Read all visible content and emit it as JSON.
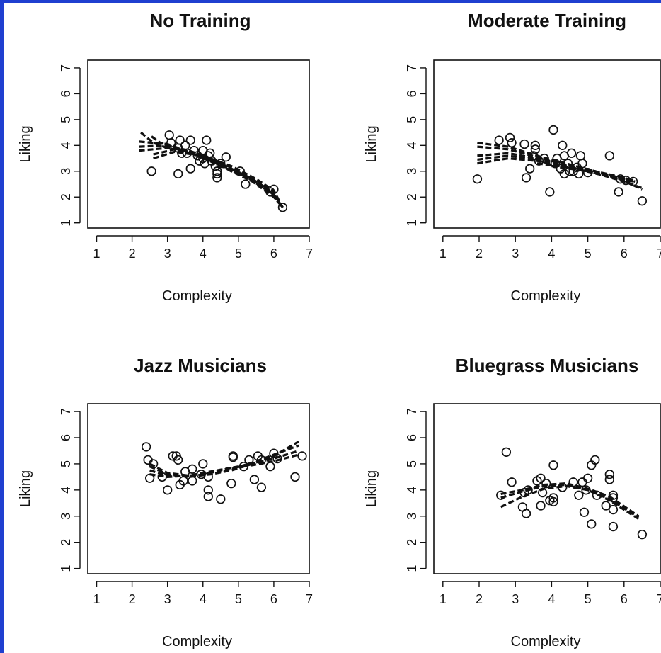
{
  "figure": {
    "frame_color": "#1f3fd0",
    "ink_color": "#111111"
  },
  "chart_data": [
    {
      "type": "scatter",
      "title": "No Training",
      "xlabel": "Complexity",
      "ylabel": "Liking",
      "xlim": [
        0.75,
        7.0
      ],
      "ylim": [
        0.8,
        7.3
      ],
      "xticks": [
        1,
        2,
        3,
        4,
        5,
        6,
        7
      ],
      "yticks": [
        1,
        2,
        3,
        4,
        5,
        6,
        7
      ],
      "points": [
        [
          2.55,
          3.0
        ],
        [
          3.05,
          4.4
        ],
        [
          3.1,
          4.1
        ],
        [
          3.3,
          2.9
        ],
        [
          3.35,
          4.2
        ],
        [
          3.3,
          3.9
        ],
        [
          3.4,
          3.7
        ],
        [
          3.5,
          4.0
        ],
        [
          3.55,
          3.7
        ],
        [
          3.65,
          4.2
        ],
        [
          3.65,
          3.1
        ],
        [
          3.75,
          3.8
        ],
        [
          3.85,
          3.6
        ],
        [
          3.9,
          3.4
        ],
        [
          4.0,
          3.8
        ],
        [
          4.0,
          3.5
        ],
        [
          4.05,
          3.3
        ],
        [
          4.1,
          4.2
        ],
        [
          4.15,
          3.6
        ],
        [
          4.2,
          3.7
        ],
        [
          4.25,
          3.4
        ],
        [
          4.35,
          3.2
        ],
        [
          4.4,
          3.0
        ],
        [
          4.4,
          2.9
        ],
        [
          4.4,
          2.75
        ],
        [
          4.5,
          3.3
        ],
        [
          4.65,
          3.55
        ],
        [
          5.05,
          3.0
        ],
        [
          5.2,
          2.5
        ],
        [
          5.9,
          2.2
        ],
        [
          6.0,
          2.3
        ],
        [
          6.25,
          1.6
        ]
      ],
      "fits": [
        [
          [
            2.2,
            3.8
          ],
          [
            3.0,
            3.9
          ],
          [
            3.6,
            3.8
          ],
          [
            4.2,
            3.5
          ],
          [
            4.8,
            3.1
          ],
          [
            5.4,
            2.7
          ],
          [
            6.0,
            2.1
          ],
          [
            6.25,
            1.6
          ]
        ],
        [
          [
            2.2,
            3.95
          ],
          [
            3.0,
            4.0
          ],
          [
            3.6,
            3.8
          ],
          [
            4.2,
            3.5
          ],
          [
            4.8,
            3.05
          ],
          [
            5.4,
            2.6
          ],
          [
            6.0,
            2.05
          ],
          [
            6.25,
            1.6
          ]
        ],
        [
          [
            2.2,
            4.15
          ],
          [
            3.0,
            4.05
          ],
          [
            3.6,
            3.75
          ],
          [
            4.2,
            3.45
          ],
          [
            4.8,
            3.0
          ],
          [
            5.4,
            2.6
          ],
          [
            6.0,
            2.0
          ],
          [
            6.25,
            1.6
          ]
        ],
        [
          [
            2.25,
            4.5
          ],
          [
            2.6,
            4.1
          ],
          [
            3.0,
            3.9
          ],
          [
            3.8,
            3.65
          ],
          [
            4.5,
            3.2
          ],
          [
            5.2,
            2.8
          ],
          [
            6.0,
            2.1
          ],
          [
            6.25,
            1.6
          ]
        ],
        [
          [
            2.6,
            3.5
          ],
          [
            3.2,
            3.75
          ],
          [
            4.0,
            3.6
          ],
          [
            4.8,
            3.2
          ],
          [
            5.5,
            2.7
          ],
          [
            6.0,
            2.25
          ],
          [
            6.25,
            1.6
          ]
        ],
        [
          [
            2.6,
            3.65
          ],
          [
            3.2,
            3.85
          ],
          [
            4.0,
            3.55
          ],
          [
            4.8,
            3.15
          ],
          [
            5.5,
            2.65
          ],
          [
            6.0,
            2.2
          ],
          [
            6.25,
            1.6
          ]
        ],
        [
          [
            2.55,
            4.35
          ],
          [
            2.8,
            4.1
          ],
          [
            3.5,
            3.8
          ],
          [
            4.3,
            3.35
          ],
          [
            5.1,
            2.9
          ],
          [
            5.8,
            2.35
          ],
          [
            6.25,
            1.6
          ]
        ]
      ]
    },
    {
      "type": "scatter",
      "title": "Moderate Training",
      "xlabel": "Complexity",
      "ylabel": "Liking",
      "xlim": [
        0.75,
        7.0
      ],
      "ylim": [
        0.8,
        7.3
      ],
      "xticks": [
        1,
        2,
        3,
        4,
        5,
        6,
        7
      ],
      "yticks": [
        1,
        2,
        3,
        4,
        5,
        6,
        7
      ],
      "points": [
        [
          1.95,
          2.7
        ],
        [
          2.55,
          4.2
        ],
        [
          2.85,
          4.3
        ],
        [
          2.9,
          4.1
        ],
        [
          3.25,
          4.05
        ],
        [
          3.3,
          2.75
        ],
        [
          3.4,
          3.1
        ],
        [
          3.5,
          3.6
        ],
        [
          3.55,
          4.0
        ],
        [
          3.55,
          3.85
        ],
        [
          3.65,
          3.4
        ],
        [
          3.8,
          3.5
        ],
        [
          3.95,
          2.2
        ],
        [
          4.05,
          4.6
        ],
        [
          4.1,
          3.3
        ],
        [
          4.15,
          3.5
        ],
        [
          4.25,
          3.1
        ],
        [
          4.3,
          4.0
        ],
        [
          4.35,
          3.6
        ],
        [
          4.35,
          2.9
        ],
        [
          4.45,
          3.3
        ],
        [
          4.5,
          3.0
        ],
        [
          4.55,
          3.7
        ],
        [
          4.6,
          3.0
        ],
        [
          4.7,
          3.15
        ],
        [
          4.75,
          2.9
        ],
        [
          4.8,
          3.6
        ],
        [
          4.85,
          3.3
        ],
        [
          5.0,
          2.95
        ],
        [
          5.6,
          3.6
        ],
        [
          5.85,
          2.2
        ],
        [
          5.9,
          2.7
        ],
        [
          6.05,
          2.65
        ],
        [
          6.25,
          2.6
        ],
        [
          6.5,
          1.85
        ]
      ],
      "fits": [
        [
          [
            1.95,
            4.1
          ],
          [
            2.8,
            3.95
          ],
          [
            3.6,
            3.6
          ],
          [
            4.4,
            3.3
          ],
          [
            5.2,
            3.0
          ],
          [
            6.0,
            2.75
          ],
          [
            6.3,
            2.6
          ]
        ],
        [
          [
            1.95,
            3.95
          ],
          [
            2.8,
            3.85
          ],
          [
            3.6,
            3.55
          ],
          [
            4.4,
            3.25
          ],
          [
            5.2,
            3.0
          ],
          [
            6.0,
            2.7
          ],
          [
            6.3,
            2.6
          ]
        ],
        [
          [
            1.95,
            3.6
          ],
          [
            2.8,
            3.7
          ],
          [
            3.6,
            3.5
          ],
          [
            4.4,
            3.25
          ],
          [
            5.2,
            3.0
          ],
          [
            6.0,
            2.7
          ],
          [
            6.3,
            2.6
          ]
        ],
        [
          [
            1.95,
            3.45
          ],
          [
            2.8,
            3.6
          ],
          [
            3.6,
            3.45
          ],
          [
            4.4,
            3.2
          ],
          [
            5.2,
            2.95
          ],
          [
            6.0,
            2.65
          ],
          [
            6.3,
            2.6
          ]
        ],
        [
          [
            1.95,
            3.3
          ],
          [
            2.8,
            3.5
          ],
          [
            3.6,
            3.4
          ],
          [
            4.4,
            3.15
          ],
          [
            5.2,
            2.95
          ],
          [
            6.0,
            2.7
          ],
          [
            6.3,
            2.65
          ]
        ],
        [
          [
            3.6,
            3.3
          ],
          [
            4.5,
            3.15
          ],
          [
            5.4,
            2.85
          ],
          [
            6.0,
            2.6
          ],
          [
            6.5,
            2.35
          ]
        ],
        [
          [
            4.0,
            3.2
          ],
          [
            5.0,
            3.0
          ],
          [
            5.8,
            2.75
          ],
          [
            6.5,
            2.3
          ]
        ]
      ]
    },
    {
      "type": "scatter",
      "title": "Jazz Musicians",
      "xlabel": "Complexity",
      "ylabel": "Liking",
      "xlim": [
        0.75,
        7.0
      ],
      "ylim": [
        0.8,
        7.3
      ],
      "xticks": [
        1,
        2,
        3,
        4,
        5,
        6,
        7
      ],
      "yticks": [
        1,
        2,
        3,
        4,
        5,
        6,
        7
      ],
      "points": [
        [
          2.4,
          5.65
        ],
        [
          2.45,
          5.15
        ],
        [
          2.5,
          4.45
        ],
        [
          2.6,
          5.0
        ],
        [
          2.85,
          4.5
        ],
        [
          3.0,
          4.0
        ],
        [
          3.15,
          5.3
        ],
        [
          3.25,
          5.3
        ],
        [
          3.3,
          5.15
        ],
        [
          3.35,
          4.2
        ],
        [
          3.45,
          4.35
        ],
        [
          3.5,
          4.7
        ],
        [
          3.7,
          4.35
        ],
        [
          3.7,
          4.8
        ],
        [
          3.95,
          4.6
        ],
        [
          4.0,
          5.0
        ],
        [
          4.15,
          4.5
        ],
        [
          4.15,
          4.0
        ],
        [
          4.15,
          3.75
        ],
        [
          4.5,
          3.65
        ],
        [
          4.8,
          4.25
        ],
        [
          4.85,
          5.3
        ],
        [
          4.85,
          5.25
        ],
        [
          5.15,
          4.9
        ],
        [
          5.3,
          5.15
        ],
        [
          5.45,
          4.4
        ],
        [
          5.55,
          5.3
        ],
        [
          5.65,
          4.1
        ],
        [
          5.65,
          5.15
        ],
        [
          5.9,
          4.9
        ],
        [
          6.0,
          5.4
        ],
        [
          6.1,
          5.2
        ],
        [
          6.6,
          4.5
        ],
        [
          6.8,
          5.3
        ]
      ],
      "fits": [
        [
          [
            2.5,
            5.0
          ],
          [
            3.0,
            4.65
          ],
          [
            3.6,
            4.55
          ],
          [
            4.2,
            4.6
          ],
          [
            4.8,
            4.75
          ],
          [
            5.4,
            5.0
          ],
          [
            6.0,
            5.3
          ],
          [
            6.7,
            5.85
          ]
        ],
        [
          [
            2.5,
            4.9
          ],
          [
            3.0,
            4.6
          ],
          [
            3.6,
            4.5
          ],
          [
            4.2,
            4.6
          ],
          [
            4.8,
            4.8
          ],
          [
            5.4,
            5.05
          ],
          [
            6.0,
            5.35
          ],
          [
            6.7,
            5.7
          ]
        ],
        [
          [
            2.5,
            4.75
          ],
          [
            3.0,
            4.55
          ],
          [
            3.6,
            4.55
          ],
          [
            4.2,
            4.65
          ],
          [
            4.8,
            4.85
          ],
          [
            5.4,
            5.0
          ],
          [
            6.0,
            5.2
          ],
          [
            6.7,
            5.5
          ]
        ],
        [
          [
            2.5,
            4.6
          ],
          [
            3.0,
            4.5
          ],
          [
            3.6,
            4.55
          ],
          [
            4.2,
            4.7
          ],
          [
            4.8,
            4.85
          ],
          [
            5.4,
            4.95
          ],
          [
            6.0,
            5.1
          ],
          [
            6.7,
            5.35
          ]
        ]
      ]
    },
    {
      "type": "scatter",
      "title": "Bluegrass Musicians",
      "xlabel": "Complexity",
      "ylabel": "Liking",
      "xlim": [
        0.75,
        7.0
      ],
      "ylim": [
        0.8,
        7.3
      ],
      "xticks": [
        1,
        2,
        3,
        4,
        5,
        6,
        7
      ],
      "yticks": [
        1,
        2,
        3,
        4,
        5,
        6,
        7
      ],
      "points": [
        [
          2.6,
          3.8
        ],
        [
          2.75,
          5.45
        ],
        [
          2.9,
          4.3
        ],
        [
          3.2,
          3.35
        ],
        [
          3.25,
          3.9
        ],
        [
          3.3,
          3.1
        ],
        [
          3.35,
          4.0
        ],
        [
          3.6,
          4.35
        ],
        [
          3.7,
          3.4
        ],
        [
          3.7,
          4.45
        ],
        [
          3.75,
          3.9
        ],
        [
          3.85,
          4.25
        ],
        [
          3.95,
          3.6
        ],
        [
          4.05,
          3.7
        ],
        [
          4.05,
          3.55
        ],
        [
          4.05,
          4.95
        ],
        [
          4.3,
          4.1
        ],
        [
          4.6,
          4.3
        ],
        [
          4.75,
          3.8
        ],
        [
          4.85,
          4.3
        ],
        [
          4.9,
          3.15
        ],
        [
          4.95,
          4.0
        ],
        [
          5.0,
          4.45
        ],
        [
          5.1,
          2.7
        ],
        [
          5.1,
          4.95
        ],
        [
          5.2,
          5.15
        ],
        [
          5.25,
          3.8
        ],
        [
          5.5,
          3.4
        ],
        [
          5.6,
          4.6
        ],
        [
          5.6,
          4.4
        ],
        [
          5.7,
          3.8
        ],
        [
          5.7,
          3.7
        ],
        [
          5.7,
          3.25
        ],
        [
          5.7,
          2.6
        ],
        [
          6.5,
          2.3
        ]
      ],
      "fits": [
        [
          [
            2.6,
            3.85
          ],
          [
            3.2,
            4.0
          ],
          [
            3.8,
            4.2
          ],
          [
            4.4,
            4.25
          ],
          [
            5.0,
            4.05
          ],
          [
            5.6,
            3.75
          ],
          [
            6.4,
            3.0
          ]
        ],
        [
          [
            2.6,
            3.7
          ],
          [
            3.2,
            3.95
          ],
          [
            3.8,
            4.15
          ],
          [
            4.4,
            4.2
          ],
          [
            5.0,
            4.0
          ],
          [
            5.6,
            3.65
          ],
          [
            6.4,
            2.95
          ]
        ],
        [
          [
            2.6,
            3.35
          ],
          [
            3.2,
            3.75
          ],
          [
            3.8,
            4.05
          ],
          [
            4.4,
            4.15
          ],
          [
            5.0,
            4.0
          ],
          [
            5.6,
            3.6
          ],
          [
            6.4,
            2.9
          ]
        ]
      ]
    }
  ]
}
